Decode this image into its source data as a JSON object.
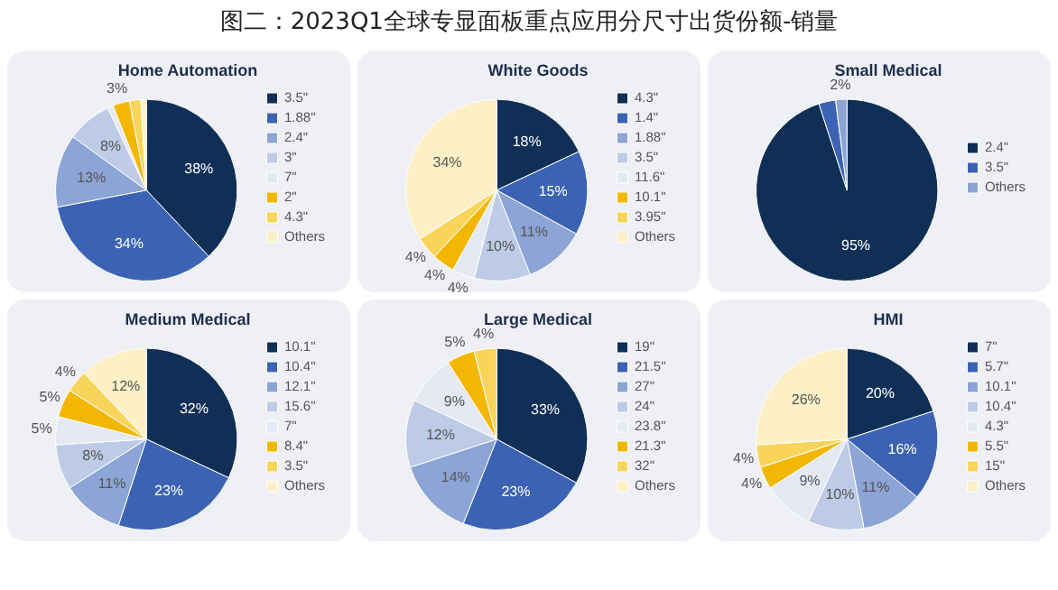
{
  "chart_data": [
    {
      "type": "other",
      "title": "图二：2023Q1全球专显面板重点应用分尺寸出货份额-销量"
    },
    {
      "type": "pie",
      "title": "Home Automation",
      "legend": "right",
      "categories": [
        "3.5\"",
        "1.88\"",
        "2.4\"",
        "3\"",
        "7\"",
        "2\"",
        "4.3\"",
        "Others"
      ],
      "values": [
        38,
        34,
        13,
        8,
        1,
        3,
        2,
        1
      ],
      "colors": [
        "#102f56",
        "#3c63b3",
        "#8ca4d6",
        "#bdcbe7",
        "#e4e9f3",
        "#f2b705",
        "#f8d45a",
        "#fdf0c6"
      ],
      "value_labels": [
        "38%",
        "34%",
        "13%",
        "8%",
        null,
        "3%",
        null,
        null
      ]
    },
    {
      "type": "pie",
      "title": "White Goods",
      "legend": "right",
      "categories": [
        "4.3\"",
        "1.4\"",
        "1.88\"",
        "3.5\"",
        "11.6\"",
        "10.1\"",
        "3.95\"",
        "Others"
      ],
      "values": [
        18,
        15,
        11,
        10,
        4,
        4,
        4,
        34
      ],
      "colors": [
        "#102f56",
        "#3c63b3",
        "#8ca4d6",
        "#bdcbe7",
        "#e4e9f3",
        "#f2b705",
        "#f8d45a",
        "#fdf0c6"
      ],
      "value_labels": [
        "18%",
        "15%",
        "11%",
        "10%",
        "4%",
        "4%",
        "4%",
        "34%"
      ]
    },
    {
      "type": "pie",
      "title": "Small Medical",
      "legend": "right",
      "categories": [
        "2.4\"",
        "3.5\"",
        "Others"
      ],
      "values": [
        95,
        3,
        2
      ],
      "colors": [
        "#102f56",
        "#3c63b3",
        "#8ca4d6"
      ],
      "value_labels": [
        "95%",
        null,
        "2%"
      ]
    },
    {
      "type": "pie",
      "title": "Medium Medical",
      "legend": "right",
      "categories": [
        "10.1\"",
        "10.4\"",
        "12.1\"",
        "15.6\"",
        "7\"",
        "8.4\"",
        "3.5\"",
        "Others"
      ],
      "values": [
        32,
        23,
        11,
        8,
        5,
        5,
        4,
        12
      ],
      "colors": [
        "#102f56",
        "#3c63b3",
        "#8ca4d6",
        "#bdcbe7",
        "#e4e9f3",
        "#f2b705",
        "#f8d45a",
        "#fdf0c6"
      ],
      "value_labels": [
        "32%",
        "23%",
        "11%",
        "8%",
        "5%",
        "5%",
        "4%",
        "12%"
      ]
    },
    {
      "type": "pie",
      "title": "Large Medical",
      "legend": "right",
      "categories": [
        "19\"",
        "21.5\"",
        "27\"",
        "24\"",
        "23.8\"",
        "21.3\"",
        "32\"",
        "Others"
      ],
      "values": [
        33,
        23,
        14,
        12,
        9,
        5,
        4,
        0
      ],
      "colors": [
        "#102f56",
        "#3c63b3",
        "#8ca4d6",
        "#bdcbe7",
        "#e4e9f3",
        "#f2b705",
        "#f8d45a",
        "#fdf0c6"
      ],
      "value_labels": [
        "33%",
        "23%",
        "14%",
        "12%",
        "9%",
        "5%",
        "4%",
        null
      ]
    },
    {
      "type": "pie",
      "title": "HMI",
      "legend": "right",
      "categories": [
        "7\"",
        "5.7\"",
        "10.1\"",
        "10.4\"",
        "4.3\"",
        "5.5\"",
        "15\"",
        "Others"
      ],
      "values": [
        20,
        16,
        11,
        10,
        9,
        4,
        4,
        26
      ],
      "colors": [
        "#102f56",
        "#3c63b3",
        "#8ca4d6",
        "#bdcbe7",
        "#e4e9f3",
        "#f2b705",
        "#f8d45a",
        "#fdf0c6"
      ],
      "value_labels": [
        "20%",
        "16%",
        "11%",
        "10%",
        "9%",
        "4%",
        "4%",
        "26%"
      ]
    }
  ]
}
